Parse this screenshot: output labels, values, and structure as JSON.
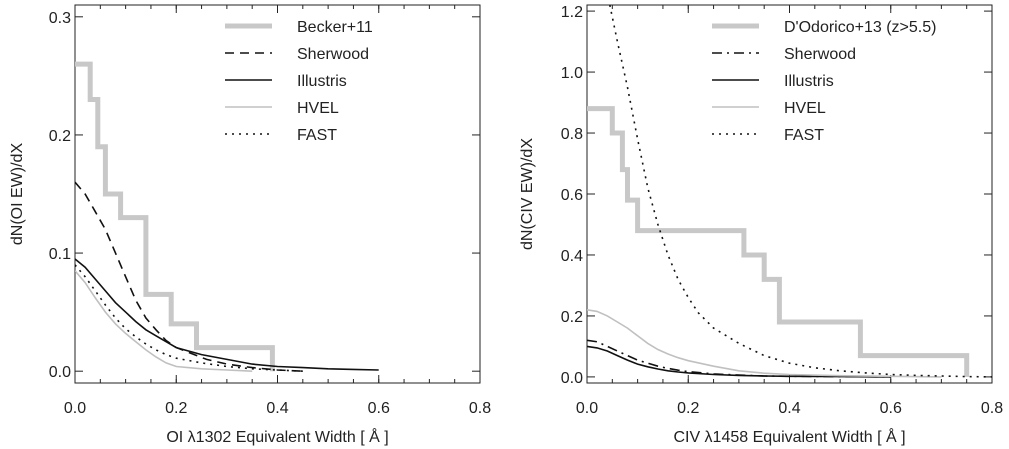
{
  "chart_data": [
    {
      "type": "line",
      "xlabel": "OI λ1302 Equivalent Width [ Å ]",
      "ylabel": "dN(OI EW)/dX",
      "xlim": [
        0.0,
        0.8
      ],
      "ylim": [
        -0.01,
        0.31
      ],
      "xticks": [
        "0.0",
        "0.2",
        "0.4",
        "0.6",
        "0.8"
      ],
      "yticks": [
        "0.0",
        "0.1",
        "0.2",
        "0.3"
      ],
      "legend_position": "top-right",
      "series": [
        {
          "name": "Becker+11",
          "style": "step",
          "color": "#c8c8c8",
          "dash": "solid",
          "width": 5,
          "points": [
            [
              0.0,
              0.26
            ],
            [
              0.03,
              0.26
            ],
            [
              0.03,
              0.23
            ],
            [
              0.045,
              0.23
            ],
            [
              0.045,
              0.19
            ],
            [
              0.06,
              0.19
            ],
            [
              0.06,
              0.15
            ],
            [
              0.09,
              0.15
            ],
            [
              0.09,
              0.13
            ],
            [
              0.14,
              0.13
            ],
            [
              0.14,
              0.065
            ],
            [
              0.19,
              0.065
            ],
            [
              0.19,
              0.04
            ],
            [
              0.24,
              0.04
            ],
            [
              0.24,
              0.02
            ],
            [
              0.39,
              0.02
            ],
            [
              0.39,
              0.0
            ]
          ]
        },
        {
          "name": "Sherwood",
          "style": "line",
          "color": "#111111",
          "dash": "dash",
          "width": 1.6,
          "points": [
            [
              0.0,
              0.16
            ],
            [
              0.02,
              0.15
            ],
            [
              0.04,
              0.135
            ],
            [
              0.06,
              0.12
            ],
            [
              0.08,
              0.1
            ],
            [
              0.1,
              0.08
            ],
            [
              0.12,
              0.06
            ],
            [
              0.14,
              0.045
            ],
            [
              0.16,
              0.035
            ],
            [
              0.18,
              0.026
            ],
            [
              0.2,
              0.02
            ],
            [
              0.23,
              0.015
            ],
            [
              0.26,
              0.01
            ],
            [
              0.3,
              0.006
            ],
            [
              0.35,
              0.003
            ],
            [
              0.4,
              0.001
            ],
            [
              0.45,
              0.0
            ]
          ]
        },
        {
          "name": "Illustris",
          "style": "line",
          "color": "#111111",
          "dash": "solid",
          "width": 1.6,
          "points": [
            [
              0.0,
              0.095
            ],
            [
              0.02,
              0.088
            ],
            [
              0.04,
              0.078
            ],
            [
              0.06,
              0.068
            ],
            [
              0.08,
              0.058
            ],
            [
              0.1,
              0.05
            ],
            [
              0.12,
              0.042
            ],
            [
              0.14,
              0.035
            ],
            [
              0.16,
              0.03
            ],
            [
              0.18,
              0.025
            ],
            [
              0.2,
              0.02
            ],
            [
              0.25,
              0.014
            ],
            [
              0.3,
              0.01
            ],
            [
              0.35,
              0.006
            ],
            [
              0.4,
              0.004
            ],
            [
              0.45,
              0.003
            ],
            [
              0.5,
              0.002
            ],
            [
              0.55,
              0.0015
            ],
            [
              0.6,
              0.001
            ]
          ]
        },
        {
          "name": "HVEL",
          "style": "line",
          "color": "#c0c0c0",
          "dash": "solid",
          "width": 1.6,
          "points": [
            [
              0.0,
              0.085
            ],
            [
              0.02,
              0.075
            ],
            [
              0.04,
              0.062
            ],
            [
              0.06,
              0.05
            ],
            [
              0.08,
              0.04
            ],
            [
              0.1,
              0.032
            ],
            [
              0.12,
              0.025
            ],
            [
              0.14,
              0.018
            ],
            [
              0.16,
              0.012
            ],
            [
              0.18,
              0.007
            ],
            [
              0.2,
              0.004
            ],
            [
              0.25,
              0.002
            ],
            [
              0.3,
              0.001
            ],
            [
              0.35,
              0.0
            ]
          ]
        },
        {
          "name": "FAST",
          "style": "line",
          "color": "#111111",
          "dash": "dot",
          "width": 1.6,
          "points": [
            [
              0.0,
              0.09
            ],
            [
              0.02,
              0.08
            ],
            [
              0.04,
              0.068
            ],
            [
              0.06,
              0.056
            ],
            [
              0.08,
              0.045
            ],
            [
              0.1,
              0.036
            ],
            [
              0.12,
              0.029
            ],
            [
              0.14,
              0.023
            ],
            [
              0.16,
              0.018
            ],
            [
              0.18,
              0.014
            ],
            [
              0.2,
              0.011
            ],
            [
              0.25,
              0.007
            ],
            [
              0.3,
              0.004
            ],
            [
              0.35,
              0.002
            ],
            [
              0.4,
              0.001
            ],
            [
              0.45,
              0.0
            ]
          ]
        }
      ]
    },
    {
      "type": "line",
      "xlabel": "CIV λ1458 Equivalent Width [ Å ]",
      "ylabel": "dN(CIV EW)/dX",
      "xlim": [
        0.0,
        0.8
      ],
      "ylim": [
        -0.02,
        1.22
      ],
      "xticks": [
        "0.0",
        "0.2",
        "0.4",
        "0.6",
        "0.8"
      ],
      "yticks": [
        "0.0",
        "0.2",
        "0.4",
        "0.6",
        "0.8",
        "1.0",
        "1.2"
      ],
      "legend_position": "top-right",
      "series": [
        {
          "name": "D'Odorico+13 (z>5.5)",
          "style": "step",
          "color": "#c8c8c8",
          "dash": "solid",
          "width": 5,
          "points": [
            [
              0.0,
              0.88
            ],
            [
              0.05,
              0.88
            ],
            [
              0.05,
              0.8
            ],
            [
              0.07,
              0.8
            ],
            [
              0.07,
              0.68
            ],
            [
              0.08,
              0.68
            ],
            [
              0.08,
              0.58
            ],
            [
              0.1,
              0.58
            ],
            [
              0.1,
              0.48
            ],
            [
              0.31,
              0.48
            ],
            [
              0.31,
              0.4
            ],
            [
              0.35,
              0.4
            ],
            [
              0.35,
              0.32
            ],
            [
              0.38,
              0.32
            ],
            [
              0.38,
              0.18
            ],
            [
              0.54,
              0.18
            ],
            [
              0.54,
              0.07
            ],
            [
              0.75,
              0.07
            ],
            [
              0.75,
              0.0
            ]
          ]
        },
        {
          "name": "Sherwood",
          "style": "line",
          "color": "#111111",
          "dash": "dashdot",
          "width": 1.6,
          "points": [
            [
              0.0,
              0.12
            ],
            [
              0.02,
              0.115
            ],
            [
              0.04,
              0.1
            ],
            [
              0.06,
              0.085
            ],
            [
              0.08,
              0.07
            ],
            [
              0.1,
              0.055
            ],
            [
              0.12,
              0.045
            ],
            [
              0.14,
              0.035
            ],
            [
              0.16,
              0.028
            ],
            [
              0.18,
              0.022
            ],
            [
              0.2,
              0.017
            ],
            [
              0.25,
              0.01
            ],
            [
              0.3,
              0.006
            ],
            [
              0.35,
              0.003
            ],
            [
              0.4,
              0.002
            ],
            [
              0.5,
              0.001
            ],
            [
              0.6,
              0.0
            ]
          ]
        },
        {
          "name": "Illustris",
          "style": "line",
          "color": "#111111",
          "dash": "solid",
          "width": 1.6,
          "points": [
            [
              0.0,
              0.1
            ],
            [
              0.02,
              0.095
            ],
            [
              0.04,
              0.085
            ],
            [
              0.06,
              0.07
            ],
            [
              0.08,
              0.055
            ],
            [
              0.1,
              0.042
            ],
            [
              0.12,
              0.033
            ],
            [
              0.14,
              0.026
            ],
            [
              0.16,
              0.02
            ],
            [
              0.18,
              0.016
            ],
            [
              0.2,
              0.013
            ],
            [
              0.25,
              0.008
            ],
            [
              0.3,
              0.005
            ],
            [
              0.35,
              0.003
            ],
            [
              0.4,
              0.002
            ],
            [
              0.5,
              0.001
            ],
            [
              0.6,
              0.0
            ]
          ]
        },
        {
          "name": "HVEL",
          "style": "line",
          "color": "#c0c0c0",
          "dash": "solid",
          "width": 1.6,
          "points": [
            [
              0.0,
              0.22
            ],
            [
              0.02,
              0.215
            ],
            [
              0.04,
              0.2
            ],
            [
              0.06,
              0.18
            ],
            [
              0.08,
              0.16
            ],
            [
              0.1,
              0.135
            ],
            [
              0.12,
              0.11
            ],
            [
              0.14,
              0.09
            ],
            [
              0.16,
              0.075
            ],
            [
              0.18,
              0.063
            ],
            [
              0.2,
              0.053
            ],
            [
              0.25,
              0.035
            ],
            [
              0.3,
              0.02
            ],
            [
              0.35,
              0.012
            ],
            [
              0.4,
              0.008
            ],
            [
              0.5,
              0.004
            ],
            [
              0.6,
              0.002
            ],
            [
              0.7,
              0.0
            ]
          ]
        },
        {
          "name": "FAST",
          "style": "line",
          "color": "#111111",
          "dash": "dot",
          "width": 1.6,
          "points": [
            [
              0.045,
              1.22
            ],
            [
              0.06,
              1.1
            ],
            [
              0.08,
              0.95
            ],
            [
              0.1,
              0.78
            ],
            [
              0.12,
              0.62
            ],
            [
              0.14,
              0.5
            ],
            [
              0.16,
              0.4
            ],
            [
              0.18,
              0.32
            ],
            [
              0.2,
              0.26
            ],
            [
              0.22,
              0.21
            ],
            [
              0.25,
              0.16
            ],
            [
              0.3,
              0.11
            ],
            [
              0.35,
              0.07
            ],
            [
              0.4,
              0.045
            ],
            [
              0.45,
              0.03
            ],
            [
              0.5,
              0.02
            ],
            [
              0.55,
              0.013
            ],
            [
              0.6,
              0.008
            ],
            [
              0.65,
              0.005
            ],
            [
              0.7,
              0.003
            ],
            [
              0.75,
              0.001
            ],
            [
              0.8,
              0.0
            ]
          ]
        }
      ]
    }
  ]
}
